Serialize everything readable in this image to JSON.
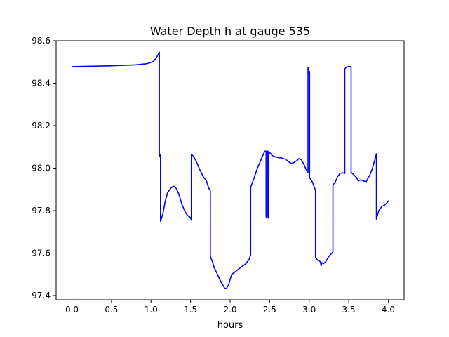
{
  "chart_data": {
    "type": "line",
    "title": "Water Depth h at gauge 535",
    "xlabel": "hours",
    "ylabel": "",
    "xlim": [
      -0.2,
      4.2
    ],
    "ylim": [
      97.38,
      98.6
    ],
    "x_ticks": [
      0.0,
      0.5,
      1.0,
      1.5,
      2.0,
      2.5,
      3.0,
      3.5,
      4.0
    ],
    "x_tick_labels": [
      "0.0",
      "0.5",
      "1.0",
      "1.5",
      "2.0",
      "2.5",
      "3.0",
      "3.5",
      "4.0"
    ],
    "y_ticks": [
      97.4,
      97.6,
      97.8,
      98.0,
      98.2,
      98.4,
      98.6
    ],
    "y_tick_labels": [
      "97.4",
      "97.6",
      "97.8",
      "98.0",
      "98.2",
      "98.4",
      "98.6"
    ],
    "grid": false,
    "line_color": "#0000ff",
    "series": [
      {
        "points": [
          [
            0.0,
            98.478
          ],
          [
            0.5,
            98.482
          ],
          [
            0.8,
            98.486
          ],
          [
            0.95,
            98.492
          ],
          [
            1.02,
            98.5
          ],
          [
            1.06,
            98.515
          ],
          [
            1.09,
            98.535
          ],
          [
            1.105,
            98.546
          ],
          [
            1.105,
            98.055
          ],
          [
            1.12,
            98.065
          ],
          [
            1.12,
            97.75
          ],
          [
            1.15,
            97.785
          ],
          [
            1.18,
            97.845
          ],
          [
            1.21,
            97.885
          ],
          [
            1.25,
            97.905
          ],
          [
            1.28,
            97.915
          ],
          [
            1.31,
            97.91
          ],
          [
            1.35,
            97.88
          ],
          [
            1.39,
            97.83
          ],
          [
            1.43,
            97.795
          ],
          [
            1.46,
            97.778
          ],
          [
            1.5,
            97.767
          ],
          [
            1.51,
            97.755
          ],
          [
            1.51,
            98.065
          ],
          [
            1.54,
            98.055
          ],
          [
            1.58,
            98.025
          ],
          [
            1.62,
            97.99
          ],
          [
            1.66,
            97.96
          ],
          [
            1.7,
            97.94
          ],
          [
            1.73,
            97.905
          ],
          [
            1.75,
            97.895
          ],
          [
            1.75,
            97.585
          ],
          [
            1.78,
            97.555
          ],
          [
            1.8,
            97.53
          ],
          [
            1.84,
            97.5
          ],
          [
            1.87,
            97.475
          ],
          [
            1.9,
            97.455
          ],
          [
            1.93,
            97.435
          ],
          [
            1.95,
            97.432
          ],
          [
            1.98,
            97.45
          ],
          [
            2.02,
            97.5
          ],
          [
            2.06,
            97.51
          ],
          [
            2.1,
            97.522
          ],
          [
            2.15,
            97.537
          ],
          [
            2.2,
            97.55
          ],
          [
            2.24,
            97.57
          ],
          [
            2.26,
            97.592
          ],
          [
            2.26,
            97.91
          ],
          [
            2.3,
            97.95
          ],
          [
            2.34,
            97.995
          ],
          [
            2.38,
            98.03
          ],
          [
            2.42,
            98.065
          ],
          [
            2.44,
            98.08
          ],
          [
            2.455,
            98.08
          ],
          [
            2.455,
            97.77
          ],
          [
            2.465,
            97.77
          ],
          [
            2.465,
            98.08
          ],
          [
            2.48,
            98.08
          ],
          [
            2.48,
            97.765
          ],
          [
            2.49,
            97.765
          ],
          [
            2.49,
            98.075
          ],
          [
            2.51,
            98.07
          ],
          [
            2.53,
            98.06
          ],
          [
            2.56,
            98.055
          ],
          [
            2.6,
            98.05
          ],
          [
            2.65,
            98.048
          ],
          [
            2.7,
            98.042
          ],
          [
            2.74,
            98.03
          ],
          [
            2.77,
            98.022
          ],
          [
            2.8,
            98.025
          ],
          [
            2.84,
            98.035
          ],
          [
            2.87,
            98.045
          ],
          [
            2.9,
            98.04
          ],
          [
            2.93,
            98.02
          ],
          [
            2.96,
            97.995
          ],
          [
            2.985,
            97.98
          ],
          [
            2.985,
            98.475
          ],
          [
            2.995,
            98.47
          ],
          [
            2.995,
            98.45
          ],
          [
            3.005,
            98.455
          ],
          [
            3.005,
            97.955
          ],
          [
            3.04,
            97.935
          ],
          [
            3.08,
            97.895
          ],
          [
            3.08,
            97.58
          ],
          [
            3.11,
            97.565
          ],
          [
            3.14,
            97.56
          ],
          [
            3.15,
            97.54
          ],
          [
            3.16,
            97.555
          ],
          [
            3.18,
            97.55
          ],
          [
            3.21,
            97.56
          ],
          [
            3.25,
            97.585
          ],
          [
            3.3,
            97.605
          ],
          [
            3.3,
            97.92
          ],
          [
            3.33,
            97.935
          ],
          [
            3.36,
            97.96
          ],
          [
            3.39,
            97.975
          ],
          [
            3.42,
            97.978
          ],
          [
            3.45,
            97.975
          ],
          [
            3.45,
            98.468
          ],
          [
            3.48,
            98.478
          ],
          [
            3.53,
            98.478
          ],
          [
            3.53,
            97.98
          ],
          [
            3.56,
            97.97
          ],
          [
            3.6,
            97.955
          ],
          [
            3.62,
            97.94
          ],
          [
            3.65,
            97.945
          ],
          [
            3.7,
            97.938
          ],
          [
            3.72,
            97.936
          ],
          [
            3.74,
            97.95
          ],
          [
            3.77,
            97.97
          ],
          [
            3.8,
            98.0
          ],
          [
            3.83,
            98.04
          ],
          [
            3.85,
            98.068
          ],
          [
            3.85,
            97.76
          ],
          [
            3.88,
            97.8
          ],
          [
            3.92,
            97.82
          ],
          [
            3.95,
            97.825
          ],
          [
            3.98,
            97.835
          ],
          [
            4.0,
            97.845
          ]
        ]
      }
    ]
  }
}
